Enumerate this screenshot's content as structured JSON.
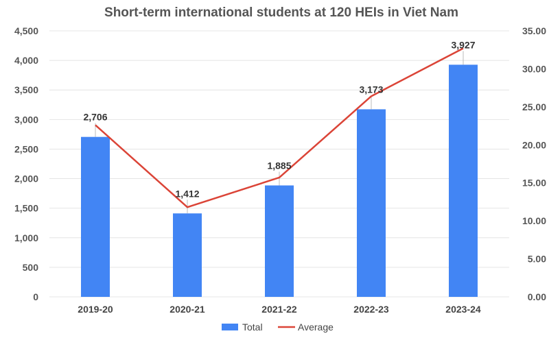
{
  "chart_data": {
    "type": "bar",
    "title": "Short-term international students at 120 HEIs in Viet Nam",
    "categories": [
      "2019-20",
      "2020-21",
      "2021-22",
      "2022-23",
      "2023-24"
    ],
    "series": [
      {
        "name": "Total",
        "type": "bar",
        "axis": "left",
        "color": "#4285f4",
        "values": [
          2706,
          1412,
          1885,
          3173,
          3927
        ]
      },
      {
        "name": "Average",
        "type": "line",
        "axis": "right",
        "color": "#db4437",
        "values": [
          22.6,
          11.8,
          15.7,
          26.4,
          32.7
        ]
      }
    ],
    "data_labels": [
      "2,706",
      "1,412",
      "1,885",
      "3,173",
      "3,927"
    ],
    "y_left": {
      "min": 0,
      "max": 4500,
      "step": 500,
      "tick_labels": [
        "0",
        "500",
        "1,000",
        "1,500",
        "2,000",
        "2,500",
        "3,000",
        "3,500",
        "4,000",
        "4,500"
      ]
    },
    "y_right": {
      "min": 0,
      "max": 35,
      "step": 5,
      "tick_labels": [
        "0.00",
        "5.00",
        "10.00",
        "15.00",
        "20.00",
        "25.00",
        "30.00",
        "35.00"
      ]
    },
    "grid": true,
    "legend_position": "bottom"
  }
}
